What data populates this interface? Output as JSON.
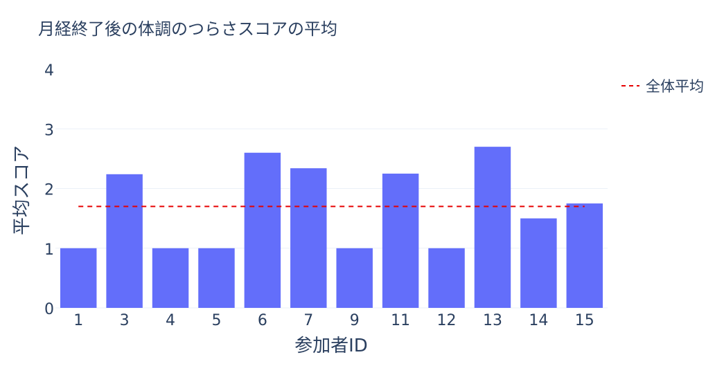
{
  "chart_data": {
    "type": "bar",
    "title": "月経終了後の体調のつらさスコアの平均",
    "xlabel": "参加者ID",
    "ylabel": "平均スコア",
    "categories": [
      "1",
      "3",
      "4",
      "5",
      "6",
      "7",
      "9",
      "11",
      "12",
      "13",
      "14",
      "15"
    ],
    "values": [
      1.0,
      2.24,
      1.0,
      1.0,
      2.6,
      2.34,
      1.0,
      2.25,
      1.0,
      2.7,
      1.5,
      1.75
    ],
    "ylim": [
      0,
      4
    ],
    "yticks": [
      "0",
      "1",
      "2",
      "3",
      "4"
    ],
    "grid": true,
    "bar_color": "#636efa",
    "reference_line": {
      "name": "全体平均",
      "value": 1.7,
      "color": "#e60000",
      "style": "dashed"
    },
    "legend": {
      "position": "top-right",
      "entries": [
        "全体平均"
      ]
    }
  }
}
